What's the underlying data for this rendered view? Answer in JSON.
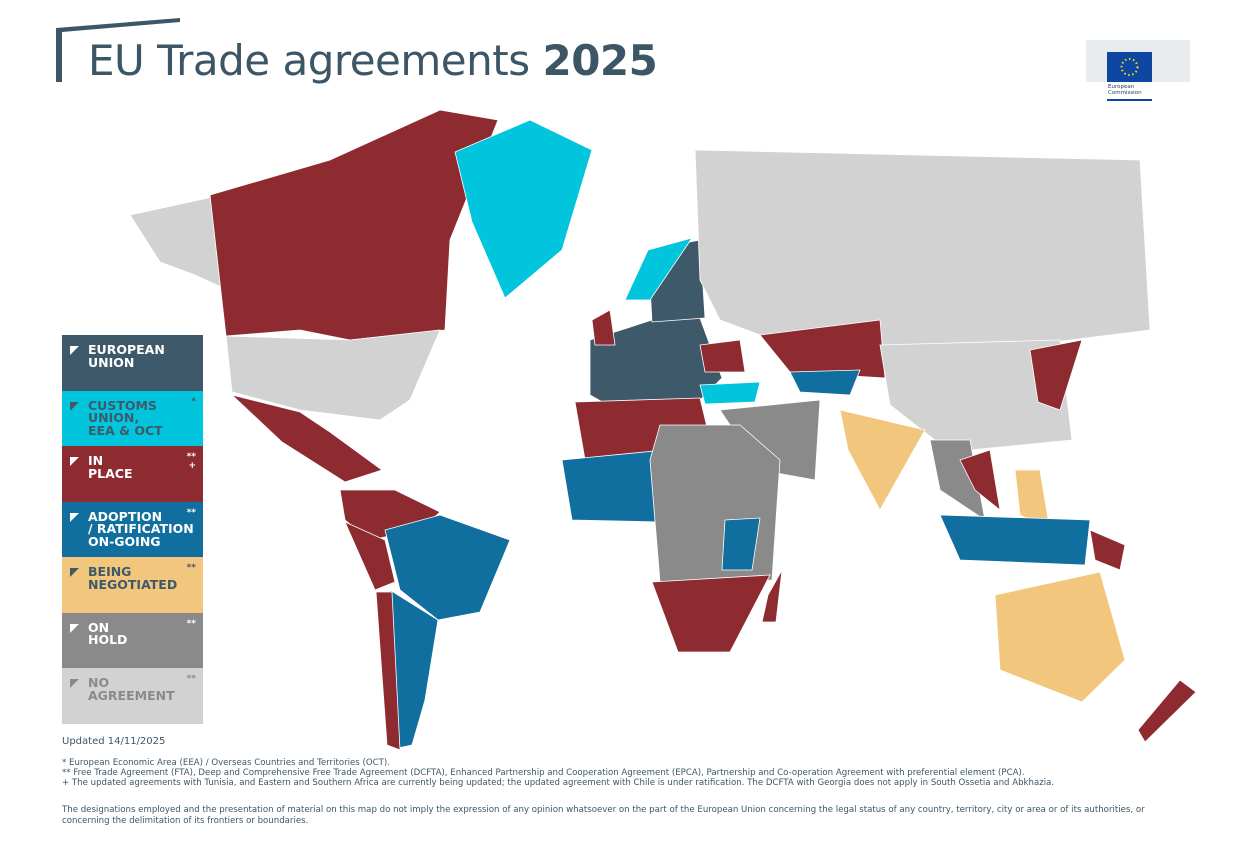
{
  "header": {
    "title": "EU Trade agreements",
    "title_year": "2025",
    "logo_text": "European Commission"
  },
  "legend": [
    {
      "lines": [
        "EUROPEAN",
        "UNION"
      ],
      "color": "#3e5a6a",
      "text_color": "#ffffff"
    },
    {
      "lines": [
        "CUSTOMS",
        "UNION,",
        "EEA & OCT"
      ],
      "markers": [
        "*"
      ],
      "color": "#00c5dd",
      "text_color": "#3e5a6a"
    },
    {
      "lines": [
        "IN",
        "PLACE"
      ],
      "markers": [
        "**",
        "+"
      ],
      "color": "#8e2b30",
      "text_color": "#ffffff"
    },
    {
      "lines": [
        "ADOPTION",
        "/ RATIFICATION",
        "ON-GOING"
      ],
      "markers": [
        "**"
      ],
      "color": "#106f9f",
      "text_color": "#ffffff"
    },
    {
      "lines": [
        "BEING",
        "NEGOTIATED"
      ],
      "markers": [
        "**"
      ],
      "color": "#f3c67e",
      "text_color": "#3e5a6a"
    },
    {
      "lines": [
        "ON",
        "HOLD"
      ],
      "markers": [
        "**"
      ],
      "color": "#8a8a8a",
      "text_color": "#ffffff"
    },
    {
      "lines": [
        "NO",
        "AGREEMENT"
      ],
      "markers": [
        "**"
      ],
      "color": "#d2d2d2",
      "text_color": "#8a8a8a"
    }
  ],
  "footer": {
    "updated": "Updated 14/11/2025",
    "notes": [
      "* European Economic Area (EEA) / Overseas Countries and Territories (OCT).",
      "** Free Trade Agreement (FTA), Deep and Comprehensive Free Trade Agreement (DCFTA), Enhanced Partnership and Cooperation Agreement (EPCA), Partnership and Co-operation Agreement with preferential element (PCA).",
      "+ The updated agreements with Tunisia, and Eastern and Southern Africa are currently being updated; the updated agreement with Chile is under ratification. The DCFTA with Georgia does not apply in South Ossetia and Abkhazia."
    ],
    "disclaimer": "The designations employed and the presentation of material on this map do not imply the expression of any opinion whatsoever on the part of the European Union concerning the legal status of any country, territory, city or area or of its authorities, or concerning the delimitation of its frontiers or boundaries."
  }
}
